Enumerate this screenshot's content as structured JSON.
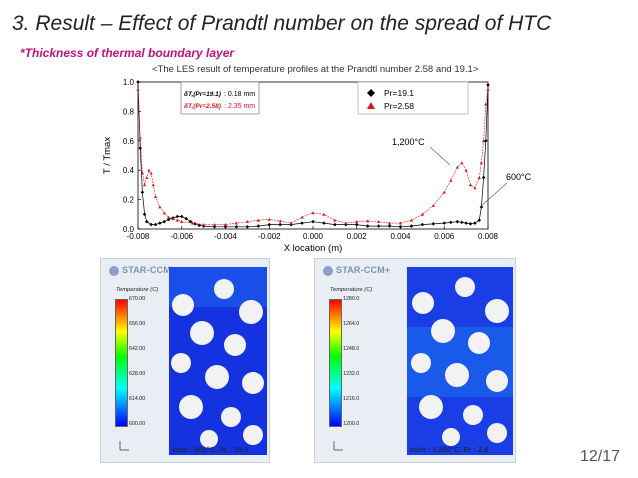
{
  "slide": {
    "title": "3. Result – Effect of Prandtl number on the spread of HTC",
    "subtitle": "*Thickness of thermal boundary layer",
    "caption": "<The LES result of temperature profiles at the Prandtl number 2.58 and 19.1>",
    "page_number": "12/17"
  },
  "colors": {
    "pr19_series": "#000000",
    "pr258_series": "#e0141e",
    "subtitle": "#c0127a",
    "accent_navy": "#1b2a4a"
  },
  "chart_data": {
    "type": "line",
    "xlabel": "X location (m)",
    "ylabel": "T / Tmax",
    "xlim": [
      -0.008,
      0.008
    ],
    "ylim": [
      0.0,
      1.0
    ],
    "x_ticks": [
      "-0.008",
      "-0.006",
      "-0.004",
      "-0.002",
      "0.000",
      "0.002",
      "0.004",
      "0.006",
      "0.008"
    ],
    "y_ticks": [
      "0.0",
      "0.2",
      "0.4",
      "0.6",
      "0.8",
      "1.0"
    ],
    "grid": false,
    "legend_position": "top-right",
    "series": [
      {
        "name": "Pr=19.1",
        "marker": "diamond",
        "points": [
          [
            -0.008,
            1.0
          ],
          [
            -0.0079,
            0.55
          ],
          [
            -0.0078,
            0.25
          ],
          [
            -0.0077,
            0.1
          ],
          [
            -0.0076,
            0.05
          ],
          [
            -0.0074,
            0.03
          ],
          [
            -0.0072,
            0.03
          ],
          [
            -0.007,
            0.04
          ],
          [
            -0.0068,
            0.05
          ],
          [
            -0.0066,
            0.065
          ],
          [
            -0.0064,
            0.075
          ],
          [
            -0.0062,
            0.085
          ],
          [
            -0.006,
            0.085
          ],
          [
            -0.0058,
            0.07
          ],
          [
            -0.0056,
            0.05
          ],
          [
            -0.0054,
            0.035
          ],
          [
            -0.0052,
            0.025
          ],
          [
            -0.005,
            0.02
          ],
          [
            -0.0045,
            0.015
          ],
          [
            -0.004,
            0.015
          ],
          [
            -0.0035,
            0.015
          ],
          [
            -0.003,
            0.015
          ],
          [
            -0.0025,
            0.02
          ],
          [
            -0.002,
            0.03
          ],
          [
            -0.0015,
            0.03
          ],
          [
            -0.001,
            0.03
          ],
          [
            -0.0005,
            0.04
          ],
          [
            0.0,
            0.05
          ],
          [
            0.0005,
            0.04
          ],
          [
            0.001,
            0.03
          ],
          [
            0.0015,
            0.03
          ],
          [
            0.002,
            0.03
          ],
          [
            0.0025,
            0.02
          ],
          [
            0.003,
            0.02
          ],
          [
            0.0035,
            0.02
          ],
          [
            0.004,
            0.015
          ],
          [
            0.0045,
            0.02
          ],
          [
            0.005,
            0.03
          ],
          [
            0.0055,
            0.035
          ],
          [
            0.006,
            0.04
          ],
          [
            0.0063,
            0.045
          ],
          [
            0.0066,
            0.05
          ],
          [
            0.0068,
            0.045
          ],
          [
            0.007,
            0.04
          ],
          [
            0.0072,
            0.035
          ],
          [
            0.0074,
            0.04
          ],
          [
            0.0076,
            0.06
          ],
          [
            0.0077,
            0.15
          ],
          [
            0.0078,
            0.35
          ],
          [
            0.0079,
            0.6
          ],
          [
            0.008,
            0.98
          ]
        ]
      },
      {
        "name": "Pr=2.58",
        "marker": "triangle",
        "points": [
          [
            -0.008,
            0.95
          ],
          [
            -0.0079,
            0.62
          ],
          [
            -0.0078,
            0.38
          ],
          [
            -0.0077,
            0.3
          ],
          [
            -0.0076,
            0.35
          ],
          [
            -0.0075,
            0.4
          ],
          [
            -0.0074,
            0.38
          ],
          [
            -0.0073,
            0.3
          ],
          [
            -0.0072,
            0.22
          ],
          [
            -0.007,
            0.15
          ],
          [
            -0.0068,
            0.11
          ],
          [
            -0.0066,
            0.08
          ],
          [
            -0.0064,
            0.07
          ],
          [
            -0.0062,
            0.06
          ],
          [
            -0.006,
            0.05
          ],
          [
            -0.0055,
            0.04
          ],
          [
            -0.005,
            0.03
          ],
          [
            -0.0045,
            0.03
          ],
          [
            -0.004,
            0.03
          ],
          [
            -0.0035,
            0.04
          ],
          [
            -0.003,
            0.05
          ],
          [
            -0.0025,
            0.06
          ],
          [
            -0.002,
            0.065
          ],
          [
            -0.0015,
            0.055
          ],
          [
            -0.001,
            0.04
          ],
          [
            -0.0005,
            0.08
          ],
          [
            0.0,
            0.11
          ],
          [
            0.0005,
            0.1
          ],
          [
            0.001,
            0.06
          ],
          [
            0.0015,
            0.04
          ],
          [
            0.002,
            0.05
          ],
          [
            0.0025,
            0.055
          ],
          [
            0.003,
            0.05
          ],
          [
            0.0035,
            0.04
          ],
          [
            0.004,
            0.04
          ],
          [
            0.0045,
            0.06
          ],
          [
            0.005,
            0.1
          ],
          [
            0.0055,
            0.16
          ],
          [
            0.006,
            0.25
          ],
          [
            0.0063,
            0.33
          ],
          [
            0.0066,
            0.42
          ],
          [
            0.0068,
            0.45
          ],
          [
            0.007,
            0.4
          ],
          [
            0.0072,
            0.3
          ],
          [
            0.0074,
            0.28
          ],
          [
            0.0076,
            0.35
          ],
          [
            0.0077,
            0.45
          ],
          [
            0.0078,
            0.6
          ],
          [
            0.0079,
            0.85
          ],
          [
            0.008,
            0.95
          ]
        ]
      }
    ],
    "annotations": {
      "thickness_pr19_label": "δT,(Pr=19.1)",
      "thickness_pr19_value": ": 0.18 mm",
      "thickness_pr258_label": "δT,(Pr=2.58)",
      "thickness_pr258_value": ": 2.35 mm",
      "temp_label_high": "1,200°C",
      "temp_label_low": "600°C"
    }
  },
  "contour_panels": [
    {
      "logo": "STAR-CCM+",
      "colorbar_title": "Temperature (C)",
      "ticks": [
        "670.00",
        "656.00",
        "642.00",
        "628.00",
        "614.00",
        "600.00"
      ],
      "caption": "Inlet : 600°C, Pr : 19.1"
    },
    {
      "logo": "STAR-CCM+",
      "colorbar_title": "Temperature (C)",
      "ticks": [
        "1280.0",
        "1264.0",
        "1248.0",
        "1232.0",
        "1216.0",
        "1200.0"
      ],
      "caption": "Inlet : 1,200°C, Pr : 2.6"
    }
  ]
}
